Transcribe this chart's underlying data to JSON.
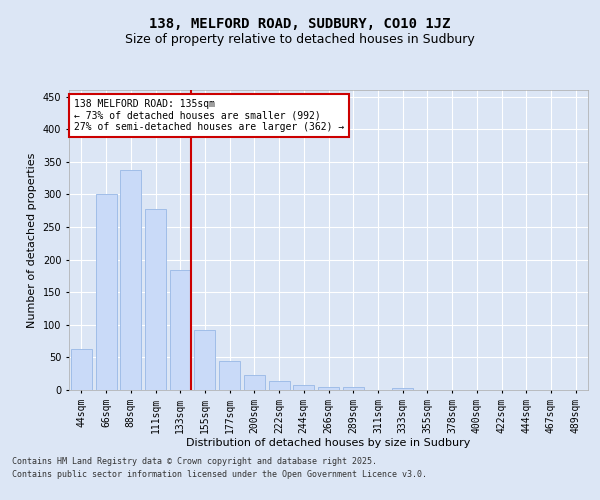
{
  "title1": "138, MELFORD ROAD, SUDBURY, CO10 1JZ",
  "title2": "Size of property relative to detached houses in Sudbury",
  "xlabel": "Distribution of detached houses by size in Sudbury",
  "ylabel": "Number of detached properties",
  "categories": [
    "44sqm",
    "66sqm",
    "88sqm",
    "111sqm",
    "133sqm",
    "155sqm",
    "177sqm",
    "200sqm",
    "222sqm",
    "244sqm",
    "266sqm",
    "289sqm",
    "311sqm",
    "333sqm",
    "355sqm",
    "378sqm",
    "400sqm",
    "422sqm",
    "444sqm",
    "467sqm",
    "489sqm"
  ],
  "values": [
    63,
    300,
    338,
    277,
    184,
    92,
    45,
    23,
    14,
    7,
    5,
    5,
    0,
    3,
    0,
    0,
    0,
    0,
    0,
    0,
    0
  ],
  "bar_color": "#c9daf8",
  "bar_edge_color": "#a0bde8",
  "vline_color": "#cc0000",
  "vline_bin_index": 4,
  "annotation_text": "138 MELFORD ROAD: 135sqm\n← 73% of detached houses are smaller (992)\n27% of semi-detached houses are larger (362) →",
  "annotation_box_color": "#ffffff",
  "annotation_box_edge": "#cc0000",
  "ylim": [
    0,
    460
  ],
  "yticks": [
    0,
    50,
    100,
    150,
    200,
    250,
    300,
    350,
    400,
    450
  ],
  "bg_color": "#dce6f5",
  "plot_bg_color": "#dce6f5",
  "footer1": "Contains HM Land Registry data © Crown copyright and database right 2025.",
  "footer2": "Contains public sector information licensed under the Open Government Licence v3.0.",
  "title_fontsize": 10,
  "subtitle_fontsize": 9,
  "tick_fontsize": 7,
  "axis_label_fontsize": 8,
  "footer_fontsize": 6
}
